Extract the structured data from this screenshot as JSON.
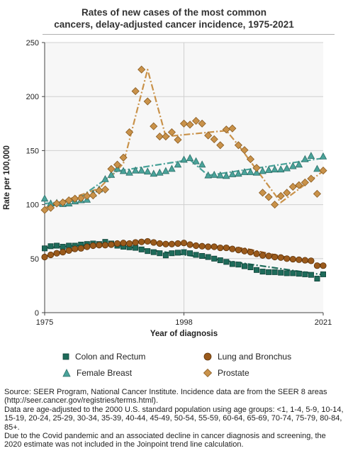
{
  "title_line1": "Rates of new cases of the most common",
  "title_line2": "cancers, delay-adjusted cancer incidence, 1975-2021",
  "colors": {
    "colon": "#1e6b5a",
    "colon_stroke": "#0f4237",
    "lung": "#9a5a1c",
    "lung_stroke": "#5e3208",
    "breast": "#4aa39a",
    "breast_stroke": "#2c6f68",
    "prostate": "#c9924a",
    "prostate_stroke": "#8a5c22",
    "plot_bg": "#f7f7f7",
    "grid": "#d0d0d0"
  },
  "chart_data": {
    "type": "scatter",
    "title": "Rates of new cases of the most common cancers, delay-adjusted cancer incidence, 1975-2021",
    "xlabel": "Year of diagnosis",
    "ylabel": "Rate per 100,000",
    "xlim": [
      1975,
      2021
    ],
    "ylim": [
      0,
      250
    ],
    "xticks": [
      "1975",
      "1998",
      "2021"
    ],
    "yticks": [
      "0",
      "50",
      "100",
      "150",
      "200",
      "250"
    ],
    "x": [
      1975,
      1976,
      1977,
      1978,
      1979,
      1980,
      1981,
      1982,
      1983,
      1984,
      1985,
      1986,
      1987,
      1988,
      1989,
      1990,
      1991,
      1992,
      1993,
      1994,
      1995,
      1996,
      1997,
      1998,
      1999,
      2000,
      2001,
      2002,
      2003,
      2004,
      2005,
      2006,
      2007,
      2008,
      2009,
      2010,
      2011,
      2012,
      2013,
      2014,
      2015,
      2016,
      2017,
      2018,
      2019,
      2020,
      2021
    ],
    "series": [
      {
        "name": "Colon and Rectum",
        "marker": "square",
        "values": [
          59.5,
          61.5,
          62.0,
          61.0,
          62.0,
          62.0,
          63.0,
          63.5,
          64.0,
          63.5,
          65.5,
          64.0,
          62.0,
          61.0,
          60.5,
          60.0,
          58.5,
          57.0,
          56.0,
          55.0,
          53.0,
          55.0,
          55.5,
          56.0,
          55.0,
          53.5,
          52.5,
          51.5,
          50.0,
          48.5,
          47.0,
          45.0,
          44.5,
          43.0,
          42.0,
          39.5,
          38.0,
          37.5,
          37.5,
          37.0,
          36.5,
          36.5,
          36.0,
          35.5,
          35.0,
          31.5,
          35.5
        ]
      },
      {
        "name": "Lung and Bronchus",
        "marker": "circle",
        "values": [
          51.5,
          53.5,
          55.0,
          56.0,
          57.5,
          59.0,
          59.5,
          61.0,
          62.0,
          62.5,
          62.5,
          63.0,
          64.0,
          64.5,
          64.0,
          65.0,
          65.5,
          66.0,
          65.0,
          64.0,
          63.5,
          63.5,
          64.0,
          64.5,
          63.0,
          62.0,
          61.5,
          61.0,
          61.0,
          60.0,
          60.0,
          59.0,
          58.0,
          57.0,
          56.0,
          54.5,
          53.0,
          52.5,
          51.5,
          51.0,
          50.0,
          49.5,
          49.0,
          48.5,
          48.0,
          43.5,
          43.5
        ]
      },
      {
        "name": "Female Breast",
        "marker": "triangle",
        "values": [
          105.5,
          101.0,
          101.5,
          100.5,
          101.0,
          103.0,
          104.0,
          104.5,
          110.0,
          114.0,
          123.5,
          127.5,
          133.0,
          131.0,
          129.5,
          131.5,
          131.5,
          130.5,
          128.5,
          129.5,
          131.0,
          133.0,
          137.0,
          141.5,
          143.0,
          140.0,
          137.0,
          127.0,
          127.5,
          127.0,
          126.5,
          128.0,
          128.5,
          130.0,
          130.0,
          129.5,
          131.0,
          132.0,
          132.5,
          132.5,
          133.5,
          135.5,
          137.0,
          142.0,
          145.0,
          133.0,
          144.5
        ]
      },
      {
        "name": "Prostate",
        "marker": "diamond",
        "values": [
          95.0,
          97.0,
          101.0,
          102.0,
          104.0,
          105.5,
          106.0,
          108.0,
          108.5,
          113.0,
          114.0,
          133.0,
          137.0,
          143.5,
          167.0,
          205.0,
          225.0,
          195.5,
          172.5,
          163.0,
          163.0,
          167.0,
          160.0,
          175.0,
          174.0,
          177.5,
          175.0,
          164.0,
          160.5,
          155.0,
          169.5,
          170.5,
          155.0,
          150.5,
          142.0,
          134.0,
          111.0,
          107.0,
          100.0,
          108.0,
          111.0,
          116.5,
          118.0,
          120.5,
          124.0,
          110.0,
          131.5
        ]
      }
    ],
    "trend_lines": [
      {
        "name": "Colon and Rectum",
        "x": [
          1975,
          1985,
          1995,
          2005,
          2021
        ],
        "y": [
          60,
          63.8,
          56,
          48,
          35
        ]
      },
      {
        "name": "Lung and Bronchus",
        "x": [
          1975,
          1983,
          1992,
          2008,
          2021
        ],
        "y": [
          52,
          61.5,
          65.5,
          59.5,
          44
        ]
      },
      {
        "name": "Female Breast",
        "x": [
          1975,
          1980,
          1987,
          1999,
          2002,
          2021
        ],
        "y": [
          101,
          103.5,
          131,
          141.5,
          127,
          143
        ]
      },
      {
        "name": "Prostate",
        "x": [
          1975,
          1984,
          1988,
          1992,
          1995,
          2005,
          2007,
          2014,
          2021
        ],
        "y": [
          97,
          115,
          138,
          225,
          163,
          168.5,
          155,
          102,
          131
        ]
      }
    ],
    "legend_position": "bottom"
  },
  "legend": [
    {
      "label": "Colon and Rectum"
    },
    {
      "label": "Lung and Bronchus"
    },
    {
      "label": "Female Breast"
    },
    {
      "label": "Prostate"
    }
  ],
  "footer": {
    "source": "Source: SEER Program, National Cancer Institute. Incidence data are from the SEER 8 areas (http://seer.cancer.gov/registries/terms.html).",
    "note1": "Data are age-adjusted to the 2000 U.S. standard population using age groups: <1, 1-4, 5-9, 10-14, 15-19, 20-24, 25-29, 30-34, 35-39, 40-44, 45-49, 50-54, 55-59, 60-64, 65-69, 70-74, 75-79, 80-84, 85+.",
    "note2": "Due to the Covid pandemic and an associated decline in cancer diagnosis and screening, the 2020 estimate was not included in the Joinpoint trend line calculation."
  }
}
